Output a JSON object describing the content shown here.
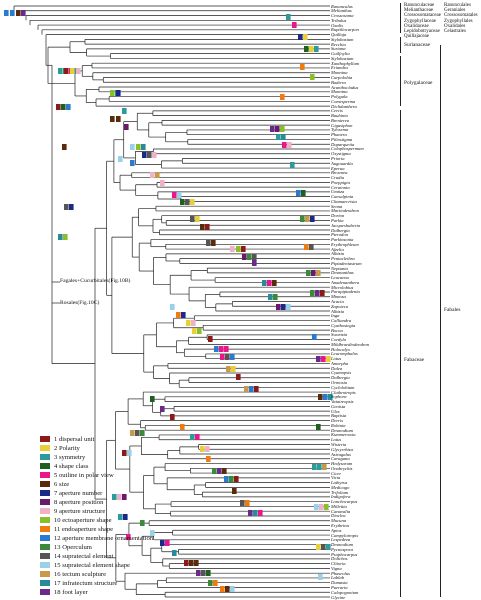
{
  "orders": [
    "Ranunculales",
    "Geraniales",
    "Crossosomatales",
    "Zygophyllales",
    "Oxalidales",
    "Celastrales"
  ],
  "families_top": [
    "Ranunculaceae",
    "Melianthaceae",
    "Crossosomataceae",
    "Zygophyllaceae",
    "Oxalidaceae",
    "Lepidobotryaceae",
    "Quillajaceae"
  ],
  "families_mid": [
    "Surianaceae",
    "Polygalaceae",
    "Fabaceae"
  ],
  "fabales_label": "Fabales",
  "notes": {
    "fagales": "Fagales+Cucurbitales(Fig.10B)",
    "rosales": "Rosales(Fig.10C)"
  },
  "taxa": [
    "Ranunculus",
    "Melianthus",
    "Crossosoma",
    "Tribulus",
    "Oxalis",
    "Ruptiliocarpon",
    "Quillaja",
    "Stylobasium",
    "Recchia",
    "Suriana",
    "Guilfoylia",
    "Stylobasium",
    "Xanthophyllum",
    "Eriandra",
    "Monnina",
    "Carpolobia",
    "Badiera",
    "Acanthocladus",
    "Monnina",
    "Polygala",
    "Comesperma",
    "Diclidanthera",
    "Cercis",
    "Bauhinia",
    "Brenierea",
    "Gigasiphon",
    "Tylosema",
    "Phanera",
    "Piliostigma",
    "Duparquetia",
    "Colophospermum",
    "Oxystigma",
    "Prioria",
    "Augouardia",
    "Eperua",
    "Brownea",
    "Crudia",
    "Poeppigia",
    "Ceratonia",
    "Umtiza",
    "Caesalpinia",
    "Chamaecrista",
    "Senna",
    "Martiodendron",
    "Dorion",
    "Parkia",
    "Jacqueshuberia",
    "Dalbergia",
    "Pterodon",
    "Parkinsonia",
    "Erythrophleum",
    "Afzelia",
    "Albizia",
    "Pentaclethra",
    "Piptadeniastrum",
    "Neptunia",
    "Desmanthus",
    "Leucaena",
    "Anadenanthera",
    "Microlobius",
    "Parapiptadenia",
    "Mimosa",
    "Acacia",
    "Zapoteca",
    "Albizia",
    "Inga",
    "Calliandra",
    "Cyathostegia",
    "Bocoa",
    "Swartzia",
    "Cordyla",
    "Mildbraediodendron",
    "Holocalyx",
    "Leucomphalos",
    "Lotus",
    "Amorpha",
    "Dalea",
    "Cyamopsis",
    "Dalbergia",
    "Ormosia",
    "Cyclolobium",
    "Clathrotropis",
    "Sophora",
    "Vataireopsis",
    "Genista",
    "Ulex",
    "Baptisia",
    "Derris",
    "Robinia",
    "Desmodium",
    "Kummerowia",
    "Lotus",
    "Wisteria",
    "Glycyrrhiza",
    "Astragalus",
    "Caragana",
    "Hedysarum",
    "Onobrychis",
    "Cicer",
    "Vicia",
    "Lathyrus",
    "Medicago",
    "Trifolium",
    "Indigofera",
    "Lonchocarpus",
    "Millettia",
    "Canavalia",
    "Dioclea",
    "Mucuna",
    "Erythrina",
    "Apios",
    "Campylotropis",
    "Lespedeza",
    "Desmodium",
    "Pycnospora",
    "Psophocarpus",
    "Dolichos",
    "Clitoria",
    "Vigna",
    "Phaseolus",
    "Lablab",
    "Dumasia",
    "Pueraria",
    "Calopogonium",
    "Glycine"
  ],
  "legend": [
    {
      "num": "1",
      "label": "dispersal unit",
      "color": "#8b1a1a"
    },
    {
      "num": "2",
      "label": "Polarity",
      "color": "#e8cf39"
    },
    {
      "num": "3",
      "label": "symmetry",
      "color": "#2f9a9a"
    },
    {
      "num": "4",
      "label": "shape class",
      "color": "#1f5f1f"
    },
    {
      "num": "5",
      "label": "outline in polar view",
      "color": "#e8178c"
    },
    {
      "num": "6",
      "label": "size",
      "color": "#5a2a0a"
    },
    {
      "num": "7",
      "label": "aperture number",
      "color": "#1a2a8a"
    },
    {
      "num": "8",
      "label": "aperture position",
      "color": "#6a1a6a"
    },
    {
      "num": "9",
      "label": "aperture structure",
      "color": "#f0b0c8"
    },
    {
      "num": "10",
      "label": "ectoaperture shape",
      "color": "#8abf2a"
    },
    {
      "num": "11",
      "label": "endoaperture shape",
      "color": "#f07a14"
    },
    {
      "num": "12",
      "label": "aperture membrane ornamentation",
      "color": "#2a7ad0"
    },
    {
      "num": "13",
      "label": "Operculum",
      "color": "#3a8a3a"
    },
    {
      "num": "14",
      "label": "supratectal element",
      "color": "#555555"
    },
    {
      "num": "15",
      "label": "supratectal element shape",
      "color": "#9ad0e8"
    },
    {
      "num": "16",
      "label": "tectum sculpture",
      "color": "#c69a4a"
    },
    {
      "num": "17",
      "label": "infratectum structure",
      "color": "#2a8a9a"
    },
    {
      "num": "18",
      "label": "foot layer",
      "color": "#6a2a8a"
    }
  ]
}
